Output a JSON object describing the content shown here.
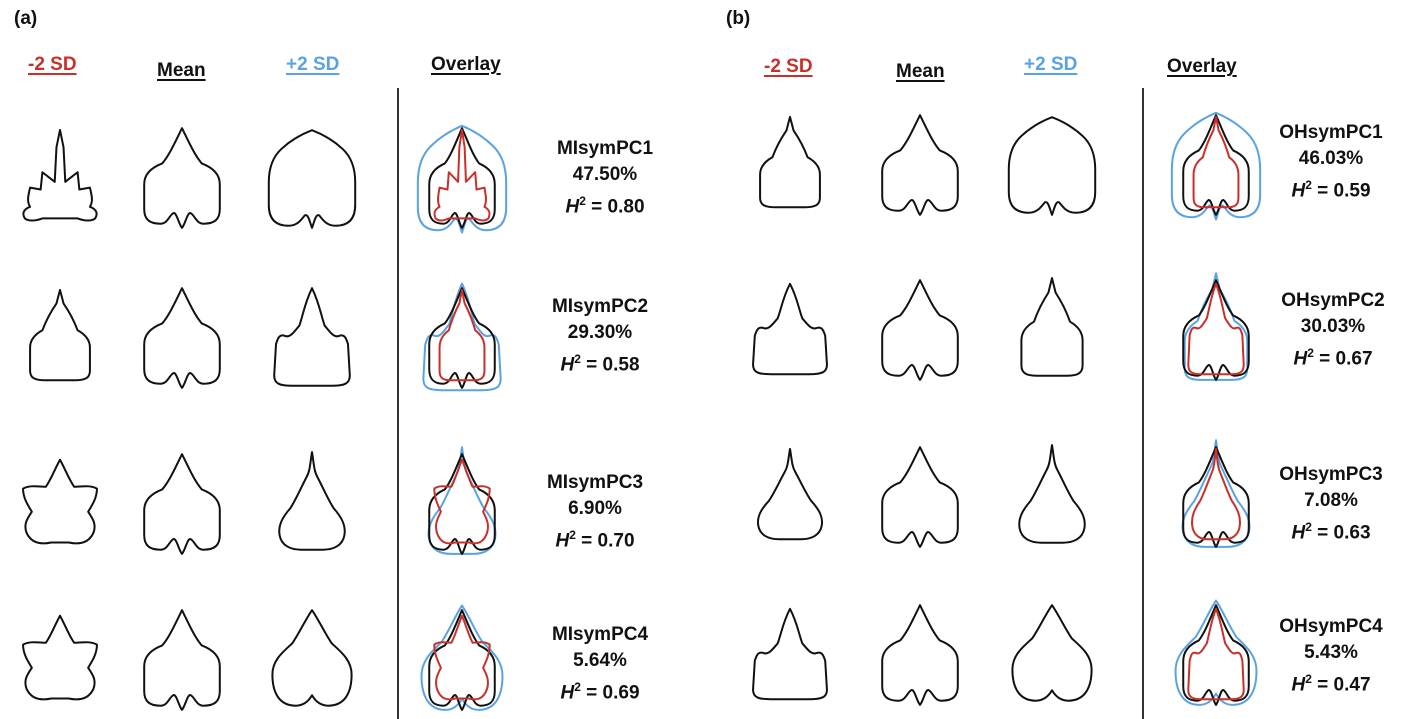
{
  "panels": [
    {
      "label": "(a)",
      "headers": {
        "minus": "-2 SD",
        "mean": "Mean",
        "plus": "+2 SD",
        "overlay": "Overlay"
      },
      "rows": [
        {
          "pc": "MIsymPC1",
          "variance": "47.50%",
          "h2_symbol": "H",
          "h2_exp": "2",
          "h2_value": "=  0.80"
        },
        {
          "pc": "MIsymPC2",
          "variance": "29.30%",
          "h2_symbol": "H",
          "h2_exp": "2",
          "h2_value": "=  0.58"
        },
        {
          "pc": "MIsymPC3",
          "variance": "6.90%",
          "h2_symbol": "H",
          "h2_exp": "2",
          "h2_value": "=  0.70"
        },
        {
          "pc": "MIsymPC4",
          "variance": "5.64%",
          "h2_symbol": "H",
          "h2_exp": "2",
          "h2_value": "=  0.69"
        }
      ]
    },
    {
      "label": "(b)",
      "headers": {
        "minus": "-2 SD",
        "mean": "Mean",
        "plus": "+2 SD",
        "overlay": "Overlay"
      },
      "rows": [
        {
          "pc": "OHsymPC1",
          "variance": "46.03%",
          "h2_symbol": "H",
          "h2_exp": "2",
          "h2_value": "= 0.59"
        },
        {
          "pc": "OHsymPC2",
          "variance": "30.03%",
          "h2_symbol": "H",
          "h2_exp": "2",
          "h2_value": "= 0.67"
        },
        {
          "pc": "OHsymPC3",
          "variance": "7.08%",
          "h2_symbol": "H",
          "h2_exp": "2",
          "h2_value": "= 0.63"
        },
        {
          "pc": "OHsymPC4",
          "variance": "5.43%",
          "h2_symbol": "H",
          "h2_exp": "2",
          "h2_value": "= 0.47"
        }
      ]
    }
  ],
  "colors": {
    "minus_sd": "#c8302a",
    "mean": "#111111",
    "plus_sd": "#5ba3e0"
  }
}
